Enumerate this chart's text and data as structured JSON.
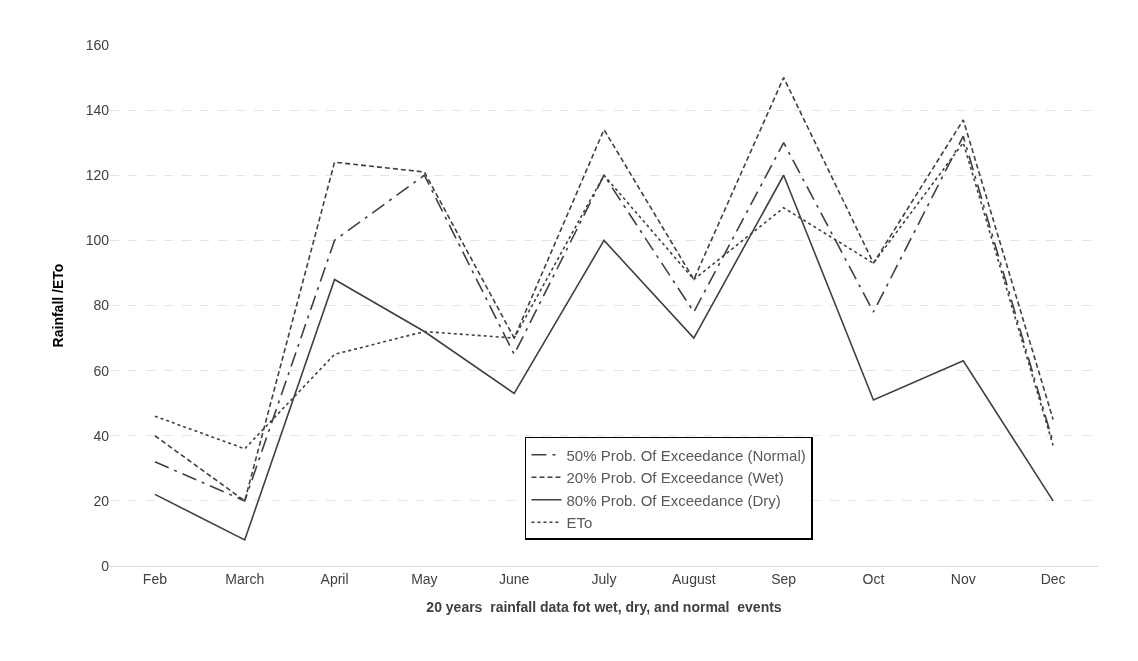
{
  "chart_data": {
    "type": "line",
    "xlabel": "20 years  rainfall data fot wet, dry, and normal  events",
    "ylabel": "Rainfall /ETo",
    "categories": [
      "Feb",
      "March",
      "April",
      "May",
      "June",
      "July",
      "August",
      "Sep",
      "Oct",
      "Nov",
      "Dec"
    ],
    "series": [
      {
        "name": "50% Prob. Of Exceedance (Normal)",
        "color": "#404040",
        "line_style": "dashdot",
        "values": [
          32,
          20,
          100,
          120,
          65,
          120,
          78,
          130,
          78,
          132,
          38
        ]
      },
      {
        "name": "20% Prob. Of Exceedance (Wet)",
        "color": "#404040",
        "line_style": "dashed",
        "values": [
          40,
          20,
          124,
          121,
          70,
          134,
          88,
          150,
          93,
          137,
          45
        ]
      },
      {
        "name": "80% Prob. Of Exceedance (Dry)",
        "color": "#404040",
        "line_style": "solid",
        "values": [
          22,
          8,
          88,
          72,
          53,
          100,
          70,
          120,
          51,
          63,
          20
        ]
      },
      {
        "name": "ETo",
        "color": "#404040",
        "line_style": "dotted",
        "values": [
          46,
          36,
          65,
          72,
          70,
          120,
          88,
          110,
          93,
          130,
          37
        ]
      }
    ],
    "ylim": [
      0,
      160
    ],
    "yticks": [
      0,
      20,
      40,
      60,
      80,
      100,
      120,
      140,
      160
    ],
    "grid": "y",
    "legend": "bottom right",
    "marker": "none"
  }
}
